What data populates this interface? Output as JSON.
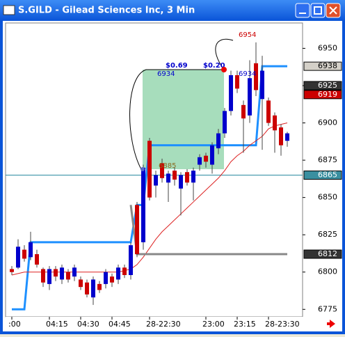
{
  "chart_data": {
    "type": "candlestick",
    "title": "S.GILD - Gilead Sciences Inc, 3 Min",
    "categories": [
      ":00",
      null,
      null,
      null,
      null,
      null,
      "04:15",
      null,
      null,
      null,
      null,
      "04:30",
      null,
      null,
      null,
      null,
      "04:45",
      null,
      null,
      null,
      null,
      null,
      "28-22:30",
      null,
      null,
      null,
      null,
      null,
      null,
      null,
      null,
      "23:00",
      null,
      null,
      null,
      null,
      "23:15",
      null,
      null,
      null,
      null,
      "28-23:30",
      null,
      null,
      null
    ],
    "open": [
      6802,
      6803,
      6815,
      6810,
      6812,
      6802,
      6792,
      6802,
      6795,
      6800,
      6797,
      6795,
      6793,
      6783,
      6792,
      6792,
      6797,
      6795,
      6803,
      6798,
      6845,
      6820,
      6888,
      6858,
      6873,
      6860,
      6868,
      6856,
      6867,
      6860,
      6872,
      6878,
      6872,
      6883,
      6893,
      6908,
      6932,
      6912,
      6905,
      6940,
      6916,
      6915,
      6905,
      6897,
      6888
    ],
    "high": [
      6804,
      6822,
      6818,
      6827,
      6815,
      6803,
      6804,
      6804,
      6805,
      6802,
      6805,
      6797,
      6795,
      6797,
      6794,
      6802,
      6799,
      6805,
      6805,
      6820,
      6847,
      6872,
      6890,
      6868,
      6876,
      6868,
      6870,
      6867,
      6869,
      6870,
      6879,
      6880,
      6887,
      6896,
      6910,
      6935,
      6935,
      6915,
      6942,
      6954,
      6945,
      6917,
      6907,
      6899,
      6894
    ],
    "low": [
      6798,
      6802,
      6807,
      6808,
      6803,
      6790,
      6788,
      6794,
      6792,
      6793,
      6794,
      6788,
      6783,
      6778,
      6786,
      6789,
      6790,
      6792,
      6796,
      6795,
      6810,
      6815,
      6848,
      6850,
      6860,
      6847,
      6858,
      6838,
      6858,
      6848,
      6868,
      6870,
      6866,
      6879,
      6890,
      6905,
      6920,
      6880,
      6900,
      6918,
      6882,
      6898,
      6880,
      6878,
      6884
    ],
    "close": [
      6800,
      6817,
      6809,
      6820,
      6805,
      6793,
      6802,
      6797,
      6803,
      6795,
      6803,
      6790,
      6785,
      6795,
      6788,
      6800,
      6793,
      6803,
      6798,
      6818,
      6812,
      6870,
      6850,
      6865,
      6863,
      6866,
      6862,
      6865,
      6860,
      6868,
      6877,
      6874,
      6885,
      6893,
      6908,
      6932,
      6923,
      6903,
      6930,
      6922,
      6935,
      6900,
      6895,
      6885,
      6893
    ],
    "up_color": "#0000cc",
    "down_color": "#cc0000",
    "lines": [
      {
        "color": "#1e90ff",
        "values": [
          6775,
          6775,
          6775,
          6820,
          6820,
          6820,
          6820,
          6820,
          6820,
          6820,
          6820,
          6820,
          6820,
          6820,
          6820,
          6820,
          6820,
          6820,
          6820,
          6820,
          6845,
          6845,
          6885,
          6885,
          6885,
          6885,
          6885,
          6885,
          6885,
          6885,
          6885,
          6885,
          6885,
          6885,
          6885,
          6885,
          6885,
          6885,
          6885,
          6885,
          6938,
          6938,
          6938,
          6938,
          6938
        ]
      },
      {
        "color": "#dd2222",
        "values": [
          6798,
          6799,
          6800,
          6800,
          6800,
          6800,
          6800,
          6800,
          6800,
          6800,
          6800,
          6800,
          6800,
          6800,
          6800,
          6800,
          6800,
          6800,
          6801,
          6802,
          6805,
          6810,
          6816,
          6822,
          6827,
          6831,
          6835,
          6839,
          6843,
          6847,
          6851,
          6855,
          6859,
          6863,
          6868,
          6874,
          6878,
          6881,
          6885,
          6888,
          6891,
          6896,
          6898,
          6899,
          6900
        ]
      },
      {
        "color": "#888888",
        "values": [
          null,
          null,
          null,
          null,
          null,
          null,
          null,
          null,
          null,
          null,
          null,
          null,
          null,
          null,
          null,
          null,
          null,
          null,
          null,
          6845,
          6812,
          6812,
          6812,
          6812,
          6812,
          6812,
          6812,
          6812,
          6812,
          6812,
          6812,
          6812,
          6812,
          6812,
          6812,
          6812,
          6812,
          6812,
          6812,
          6812,
          6812,
          6812,
          6812,
          6812,
          6812
        ]
      }
    ],
    "ylim": [
      6770,
      6967
    ],
    "yticks": [
      6775,
      6800,
      6825,
      6850,
      6875,
      6900,
      6925,
      6950
    ],
    "hline": 6865,
    "price_tags": [
      {
        "value": 6938,
        "color": "#d4d0c8"
      },
      {
        "value": 6925,
        "color": "#333333"
      },
      {
        "value": 6919,
        "color": "#cc0000"
      },
      {
        "value": 6865,
        "color": "#3a8fa0"
      },
      {
        "value": 6812,
        "color": "#333333"
      }
    ],
    "annotations": [
      "$0.69",
      "$0.20",
      "6934",
      "6954",
      "6885",
      "6934"
    ]
  }
}
